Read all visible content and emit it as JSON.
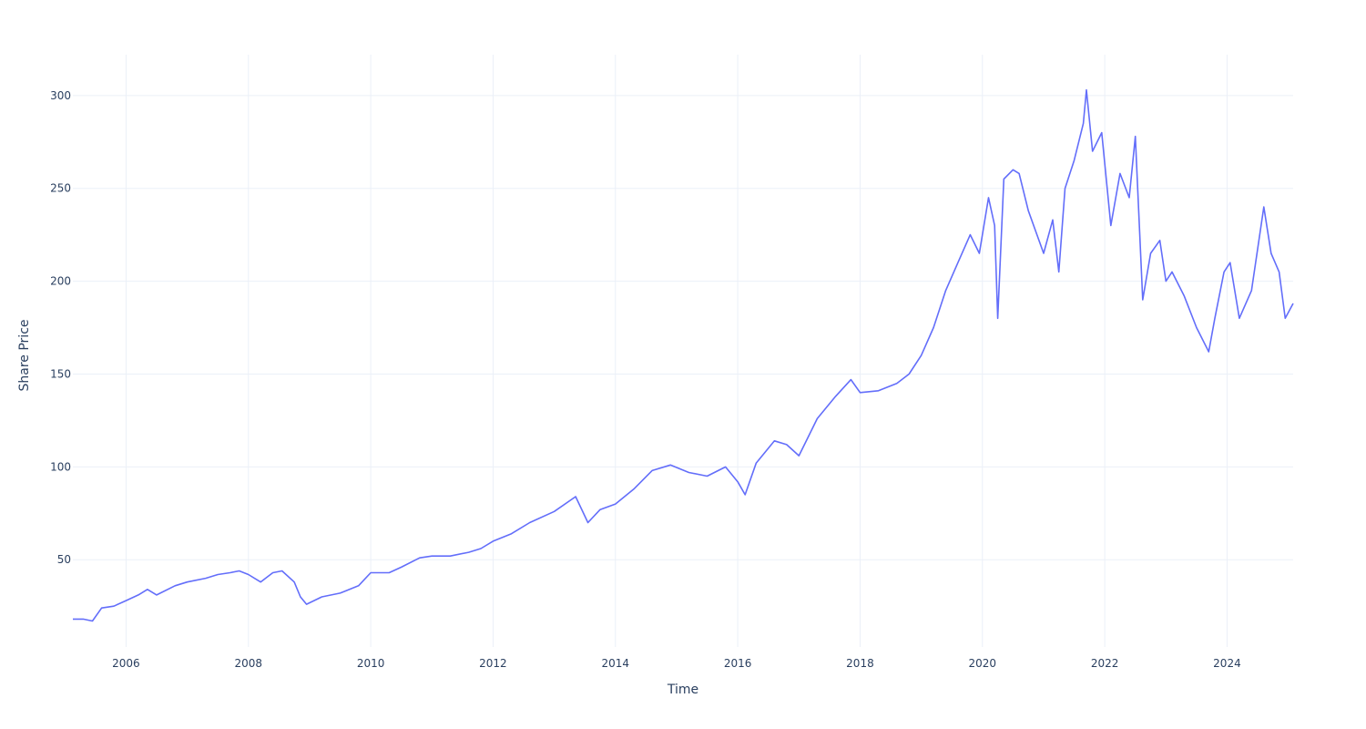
{
  "chart_data": {
    "type": "line",
    "title": "",
    "xlabel": "Time",
    "ylabel": "Share Price",
    "x_tick_labels": [
      "2006",
      "2008",
      "2010",
      "2012",
      "2014",
      "2016",
      "2018",
      "2020",
      "2022",
      "2024"
    ],
    "y_tick_labels": [
      "50",
      "100",
      "150",
      "200",
      "250",
      "300"
    ],
    "xlim": [
      2005.13,
      2025.08
    ],
    "ylim": [
      3,
      322
    ],
    "grid": true,
    "legend": "none",
    "colors": {
      "line": "#636efa",
      "grid": "#ebf0f8",
      "text": "#2a3f5f"
    },
    "series": [
      {
        "x": [
          2005.13,
          2005.3,
          2005.45,
          2005.6,
          2005.8,
          2006.0,
          2006.2,
          2006.35,
          2006.5,
          2006.8,
          2007.0,
          2007.3,
          2007.5,
          2007.7,
          2007.85,
          2008.0,
          2008.2,
          2008.4,
          2008.55,
          2008.75,
          2008.85,
          2008.95,
          2009.2,
          2009.5,
          2009.8,
          2010.0,
          2010.3,
          2010.5,
          2010.8,
          2011.0,
          2011.3,
          2011.6,
          2011.8,
          2012.0,
          2012.3,
          2012.6,
          2013.0,
          2013.35,
          2013.55,
          2013.75,
          2014.0,
          2014.3,
          2014.6,
          2014.9,
          2015.2,
          2015.5,
          2015.8,
          2016.0,
          2016.12,
          2016.3,
          2016.6,
          2016.8,
          2017.0,
          2017.3,
          2017.6,
          2017.85,
          2018.0,
          2018.3,
          2018.6,
          2018.8,
          2019.0,
          2019.2,
          2019.4,
          2019.6,
          2019.8,
          2019.95,
          2020.1,
          2020.2,
          2020.25,
          2020.35,
          2020.5,
          2020.6,
          2020.75,
          2021.0,
          2021.15,
          2021.25,
          2021.35,
          2021.5,
          2021.65,
          2021.7,
          2021.8,
          2021.95,
          2022.1,
          2022.25,
          2022.4,
          2022.5,
          2022.62,
          2022.75,
          2022.9,
          2023.0,
          2023.1,
          2023.3,
          2023.5,
          2023.7,
          2023.8,
          2023.95,
          2024.05,
          2024.2,
          2024.4,
          2024.6,
          2024.72,
          2024.85,
          2024.95,
          2025.08
        ],
        "y": [
          18,
          18,
          17,
          24,
          25,
          28,
          31,
          34,
          31,
          36,
          38,
          40,
          42,
          43,
          44,
          42,
          38,
          43,
          44,
          38,
          30,
          26,
          30,
          32,
          36,
          43,
          43,
          46,
          51,
          52,
          52,
          54,
          56,
          60,
          64,
          70,
          76,
          84,
          70,
          77,
          80,
          88,
          98,
          101,
          97,
          95,
          100,
          92,
          85,
          102,
          114,
          112,
          106,
          126,
          138,
          147,
          140,
          141,
          145,
          150,
          160,
          175,
          195,
          210,
          225,
          215,
          245,
          230,
          180,
          255,
          260,
          258,
          238,
          215,
          233,
          205,
          250,
          265,
          285,
          303,
          270,
          280,
          230,
          258,
          245,
          278,
          190,
          215,
          222,
          200,
          205,
          192,
          175,
          162,
          180,
          205,
          210,
          180,
          195,
          240,
          215,
          205,
          180,
          188
        ]
      }
    ]
  }
}
